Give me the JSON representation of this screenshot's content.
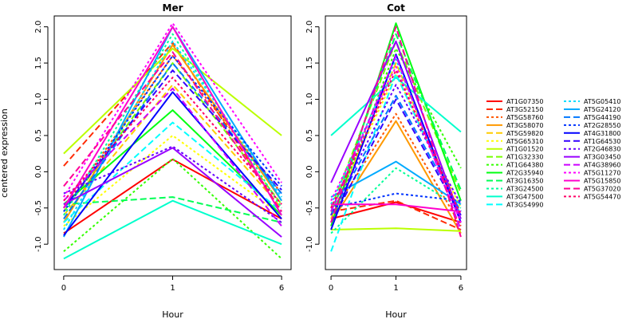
{
  "chart_data": {
    "type": "line",
    "ylabel": "centered expression",
    "x": [
      0,
      1,
      6
    ],
    "x_tick_labels": [
      "0",
      "1",
      "6"
    ],
    "xlabel": "Hour",
    "ylim": [
      -1.35,
      2.15
    ],
    "y_ticks": [
      -1.0,
      -0.5,
      0.0,
      0.5,
      1.0,
      1.5,
      2.0
    ],
    "y_tick_labels": [
      "-1.0",
      "-0.5",
      "0.0",
      "0.5",
      "1.0",
      "1.5",
      "2.0"
    ],
    "legend_position": "right",
    "series_styles": [
      {
        "name": "AT1G07350",
        "color": "#FF0000",
        "dash": "solid"
      },
      {
        "name": "AT3G52150",
        "color": "#FF2A00",
        "dash": "dashed"
      },
      {
        "name": "AT5G58760",
        "color": "#FF5500",
        "dash": "dotted"
      },
      {
        "name": "AT3G58070",
        "color": "#FF9900",
        "dash": "solid"
      },
      {
        "name": "AT5G59820",
        "color": "#FFCC00",
        "dash": "dashed"
      },
      {
        "name": "AT5G65310",
        "color": "#FFFF00",
        "dash": "dotted"
      },
      {
        "name": "AT1G01520",
        "color": "#BBFF00",
        "dash": "solid"
      },
      {
        "name": "AT1G32330",
        "color": "#77FF00",
        "dash": "dashed"
      },
      {
        "name": "AT1G64380",
        "color": "#33FF00",
        "dash": "dotted"
      },
      {
        "name": "AT2G35940",
        "color": "#00FF11",
        "dash": "solid"
      },
      {
        "name": "AT3G16350",
        "color": "#00FF55",
        "dash": "dashed"
      },
      {
        "name": "AT3G24500",
        "color": "#00FF99",
        "dash": "dotted"
      },
      {
        "name": "AT3G47500",
        "color": "#00FFCC",
        "dash": "solid"
      },
      {
        "name": "AT3G54990",
        "color": "#00FFFF",
        "dash": "dashed"
      },
      {
        "name": "AT5G05410",
        "color": "#00DDFF",
        "dash": "dotted"
      },
      {
        "name": "AT5G24120",
        "color": "#00AAFF",
        "dash": "solid"
      },
      {
        "name": "AT5G44190",
        "color": "#0077FF",
        "dash": "dashed"
      },
      {
        "name": "AT2G28550",
        "color": "#0033FF",
        "dash": "dotted"
      },
      {
        "name": "AT4G31800",
        "color": "#0000FF",
        "dash": "solid"
      },
      {
        "name": "AT1G64530",
        "color": "#3300FF",
        "dash": "dashed"
      },
      {
        "name": "AT2G46830",
        "color": "#6600FF",
        "dash": "dotted"
      },
      {
        "name": "AT3G03450",
        "color": "#9900FF",
        "dash": "solid"
      },
      {
        "name": "AT4G38960",
        "color": "#CC00FF",
        "dash": "dashed"
      },
      {
        "name": "AT5G11270",
        "color": "#FF00FF",
        "dash": "dotted"
      },
      {
        "name": "AT5G15850",
        "color": "#FF00CC",
        "dash": "solid"
      },
      {
        "name": "AT5G37020",
        "color": "#FF0099",
        "dash": "dashed"
      },
      {
        "name": "AT5G54470",
        "color": "#FF0066",
        "dash": "dotted"
      }
    ],
    "panels": [
      {
        "title": "Mer",
        "series": [
          {
            "name": "AT1G07350",
            "values": [
              -0.85,
              0.17,
              -0.65
            ]
          },
          {
            "name": "AT3G52150",
            "values": [
              0.08,
              1.78,
              -0.55
            ]
          },
          {
            "name": "AT5G58760",
            "values": [
              -0.5,
              1.6,
              -0.3
            ]
          },
          {
            "name": "AT3G58070",
            "values": [
              -0.7,
              1.75,
              -0.4
            ]
          },
          {
            "name": "AT5G59820",
            "values": [
              -0.6,
              1.2,
              -0.5
            ]
          },
          {
            "name": "AT5G65310",
            "values": [
              -0.75,
              0.5,
              -0.6
            ]
          },
          {
            "name": "AT1G01520",
            "values": [
              0.25,
              1.7,
              0.5
            ]
          },
          {
            "name": "AT1G32330",
            "values": [
              -0.55,
              1.5,
              -0.45
            ]
          },
          {
            "name": "AT1G64380",
            "values": [
              -1.1,
              0.18,
              -1.2
            ]
          },
          {
            "name": "AT2G35940",
            "values": [
              -0.45,
              0.85,
              -0.6
            ]
          },
          {
            "name": "AT3G16350",
            "values": [
              -0.45,
              -0.35,
              -0.7
            ]
          },
          {
            "name": "AT3G24500",
            "values": [
              -0.6,
              1.9,
              -0.5
            ]
          },
          {
            "name": "AT3G47500",
            "values": [
              -1.2,
              -0.4,
              -1.0
            ]
          },
          {
            "name": "AT3G54990",
            "values": [
              -0.7,
              0.68,
              -0.55
            ]
          },
          {
            "name": "AT5G05410",
            "values": [
              -0.8,
              1.8,
              -0.35
            ]
          },
          {
            "name": "AT5G24120",
            "values": [
              -0.9,
              2.0,
              -0.4
            ]
          },
          {
            "name": "AT5G44190",
            "values": [
              -0.65,
              1.5,
              -0.3
            ]
          },
          {
            "name": "AT2G28550",
            "values": [
              -0.55,
              1.6,
              -0.2
            ]
          },
          {
            "name": "AT4G31800",
            "values": [
              -0.88,
              1.1,
              -0.65
            ]
          },
          {
            "name": "AT1G64530",
            "values": [
              -0.5,
              1.4,
              -0.25
            ]
          },
          {
            "name": "AT2G46830",
            "values": [
              -0.3,
              0.35,
              -0.7
            ]
          },
          {
            "name": "AT3G03450",
            "values": [
              -0.45,
              0.33,
              -0.9
            ]
          },
          {
            "name": "AT4G38960",
            "values": [
              -0.4,
              1.15,
              -0.75
            ]
          },
          {
            "name": "AT5G11270",
            "values": [
              -0.35,
              2.05,
              -0.15
            ]
          },
          {
            "name": "AT5G15850",
            "values": [
              -0.5,
              2.0,
              -0.6
            ]
          },
          {
            "name": "AT5G37020",
            "values": [
              -0.2,
              1.65,
              -0.55
            ]
          },
          {
            "name": "AT5G54470",
            "values": [
              -0.4,
              1.3,
              -0.45
            ]
          }
        ]
      },
      {
        "title": "Cot",
        "series": [
          {
            "name": "AT1G07350",
            "values": [
              -0.65,
              -0.42,
              -0.7
            ]
          },
          {
            "name": "AT3G52150",
            "values": [
              -0.55,
              -0.4,
              -0.8
            ]
          },
          {
            "name": "AT5G58760",
            "values": [
              -0.6,
              0.8,
              -0.75
            ]
          },
          {
            "name": "AT3G58070",
            "values": [
              -0.7,
              0.7,
              -0.85
            ]
          },
          {
            "name": "AT5G59820",
            "values": [
              -0.65,
              1.5,
              -0.6
            ]
          },
          {
            "name": "AT5G65310",
            "values": [
              -0.55,
              1.35,
              -0.5
            ]
          },
          {
            "name": "AT1G01520",
            "values": [
              -0.8,
              -0.78,
              -0.82
            ]
          },
          {
            "name": "AT1G32330",
            "values": [
              -0.5,
              1.8,
              -0.3
            ]
          },
          {
            "name": "AT1G64380",
            "values": [
              -0.7,
              1.7,
              0.05
            ]
          },
          {
            "name": "AT2G35940",
            "values": [
              -0.75,
              2.05,
              -0.4
            ]
          },
          {
            "name": "AT3G16350",
            "values": [
              -0.6,
              1.9,
              -0.25
            ]
          },
          {
            "name": "AT3G24500",
            "values": [
              -0.85,
              0.05,
              -0.5
            ]
          },
          {
            "name": "AT3G47500",
            "values": [
              0.5,
              1.3,
              0.55
            ]
          },
          {
            "name": "AT3G54990",
            "values": [
              -1.1,
              1.35,
              -0.6
            ]
          },
          {
            "name": "AT5G05410",
            "values": [
              -0.45,
              1.55,
              -0.65
            ]
          },
          {
            "name": "AT5G24120",
            "values": [
              -0.35,
              0.14,
              -0.45
            ]
          },
          {
            "name": "AT5G44190",
            "values": [
              -0.6,
              1.05,
              -0.55
            ]
          },
          {
            "name": "AT2G28550",
            "values": [
              -0.5,
              -0.3,
              -0.4
            ]
          },
          {
            "name": "AT4G31800",
            "values": [
              -0.8,
              1.62,
              -0.7
            ]
          },
          {
            "name": "AT1G64530",
            "values": [
              -0.7,
              1.0,
              -0.6
            ]
          },
          {
            "name": "AT2G46830",
            "values": [
              -0.6,
              1.2,
              -0.45
            ]
          },
          {
            "name": "AT3G03450",
            "values": [
              -0.15,
              1.8,
              -0.65
            ]
          },
          {
            "name": "AT4G38960",
            "values": [
              -0.55,
              1.6,
              -0.8
            ]
          },
          {
            "name": "AT5G11270",
            "values": [
              -0.4,
              1.45,
              -0.7
            ]
          },
          {
            "name": "AT5G15850",
            "values": [
              -0.45,
              -0.45,
              -0.55
            ]
          },
          {
            "name": "AT5G37020",
            "values": [
              -0.7,
              2.0,
              -0.9
            ]
          },
          {
            "name": "AT5G54470",
            "values": [
              -0.5,
              1.4,
              -0.6
            ]
          }
        ]
      }
    ]
  }
}
